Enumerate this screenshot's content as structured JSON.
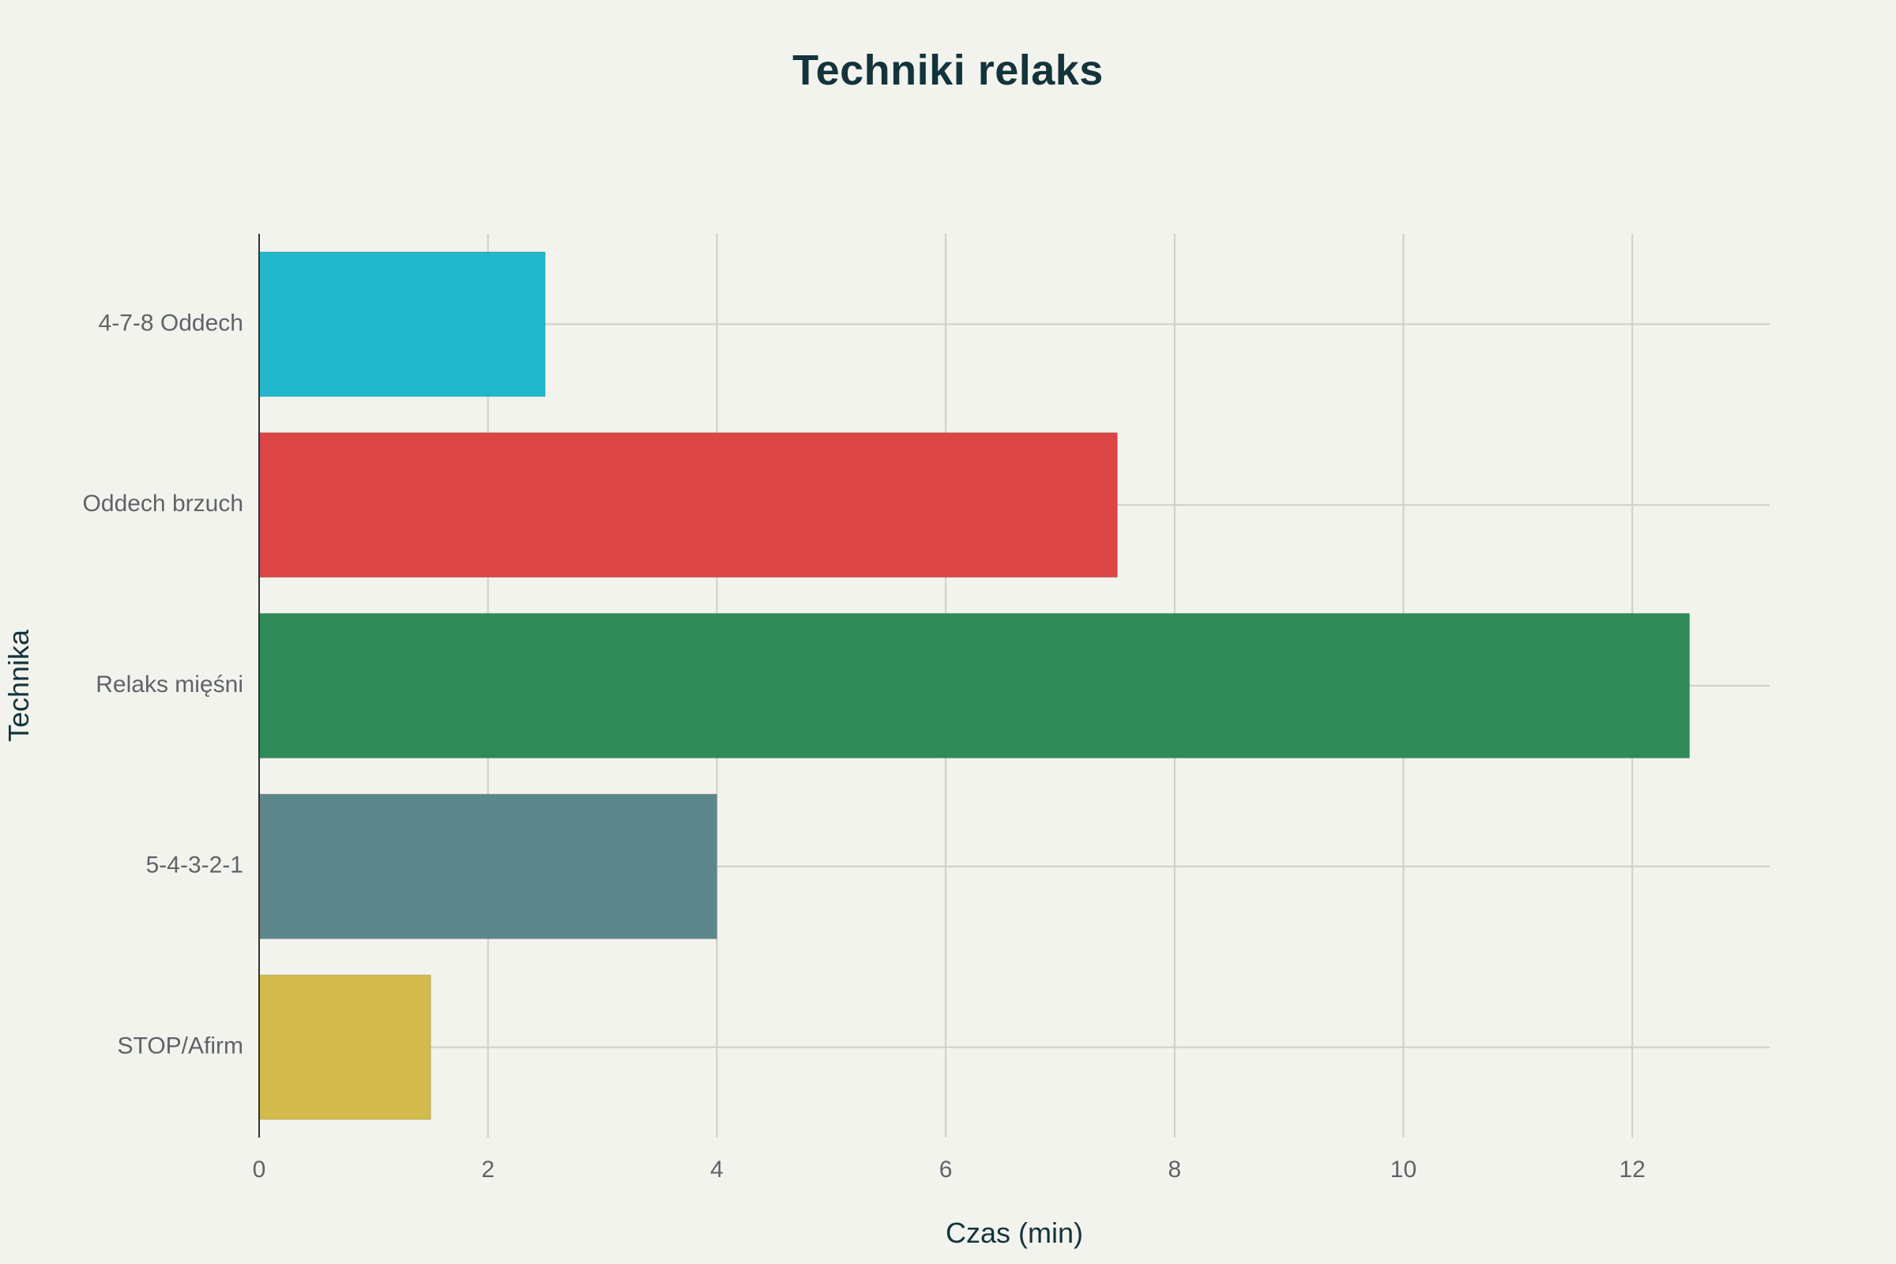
{
  "chart_data": {
    "type": "bar",
    "orientation": "horizontal",
    "title": "Techniki relaks",
    "xlabel": "Czas (min)",
    "ylabel": "Technika",
    "categories": [
      "4-7-8 Oddech",
      "Oddech brzuch",
      "Relaks mięśni",
      "5-4-3-2-1",
      "STOP/Afirm"
    ],
    "values": [
      2.5,
      7.5,
      12.5,
      4,
      1.5
    ],
    "colors": [
      "#21b8cd",
      "#db4545",
      "#2e8b57",
      "#5d878b",
      "#d2ba4c"
    ],
    "xlim": [
      0,
      13.2
    ],
    "xticks": [
      "0",
      "2",
      "4",
      "6",
      "8",
      "10",
      "12"
    ],
    "grid": true,
    "legend": "none"
  }
}
